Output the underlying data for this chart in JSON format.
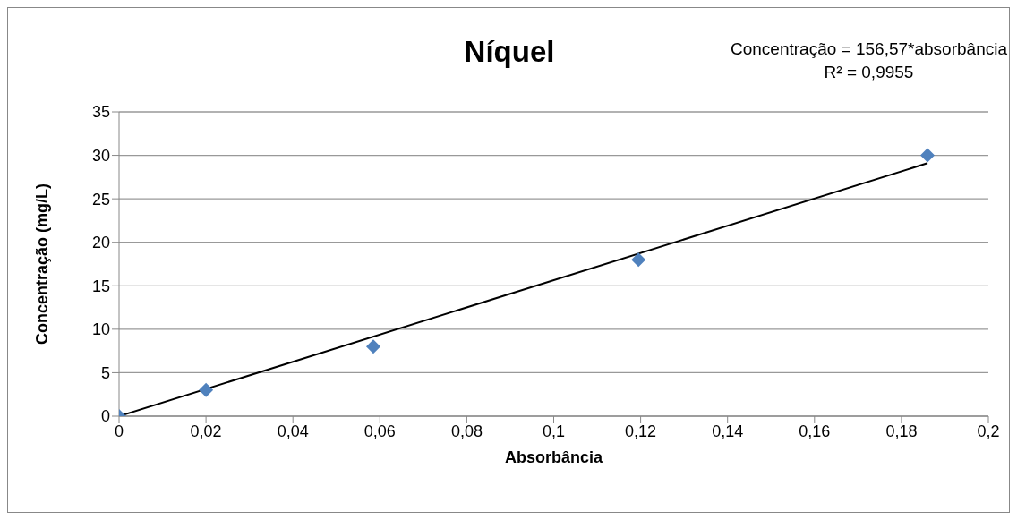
{
  "chart_data": {
    "type": "scatter",
    "title": "Níquel",
    "xlabel": "Absorbância",
    "ylabel": "Concentração (mg/L)",
    "annotations": [
      "Concentração = 156,57*absorbância",
      "R² = 0,9955"
    ],
    "series": [
      {
        "color": "#4f81bd",
        "x": [
          0,
          0.02,
          0.0585,
          0.1195,
          0.186
        ],
        "values": [
          0,
          3,
          8,
          18,
          30
        ],
        "marker": "diamond"
      },
      {
        "type": "line",
        "color": "#000000",
        "x": [
          0,
          0.186
        ],
        "values": [
          0,
          29.1
        ],
        "line_style": "solid"
      }
    ],
    "xlim": [
      0,
      0.2
    ],
    "xticks": [
      {
        "value": 0,
        "label": "0"
      },
      {
        "value": 0.02,
        "label": "0,02"
      },
      {
        "value": 0.04,
        "label": "0,04"
      },
      {
        "value": 0.06,
        "label": "0,06"
      },
      {
        "value": 0.08,
        "label": "0,08"
      },
      {
        "value": 0.1,
        "label": "0,1"
      },
      {
        "value": 0.12,
        "label": "0,12"
      },
      {
        "value": 0.14,
        "label": "0,14"
      },
      {
        "value": 0.16,
        "label": "0,16"
      },
      {
        "value": 0.18,
        "label": "0,18"
      },
      {
        "value": 0.2,
        "label": "0,2"
      }
    ],
    "ylim": [
      0,
      35
    ],
    "yticks": [
      0,
      5,
      10,
      15,
      20,
      25,
      30,
      35
    ],
    "grid": "y"
  }
}
